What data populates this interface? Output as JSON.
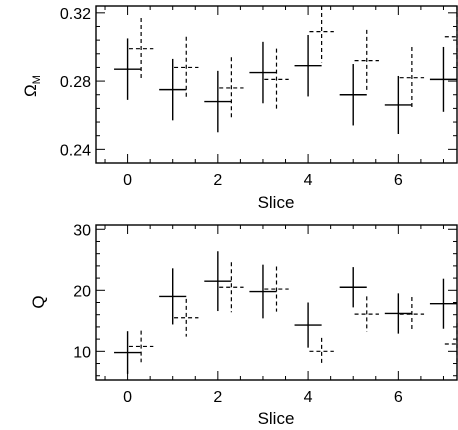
{
  "chart_data": [
    {
      "type": "scatter",
      "title": "",
      "xlabel": "Slice",
      "ylabel": "Ω",
      "ylabel_sub": "M",
      "xlim": [
        -0.7,
        7.3
      ],
      "ylim": [
        0.232,
        0.324
      ],
      "xticks": [
        0,
        2,
        4,
        6
      ],
      "xtick_labels": [
        "0",
        "2",
        "4",
        "6"
      ],
      "yticks": [
        0.24,
        0.28,
        0.32
      ],
      "ytick_labels": [
        "0.24",
        "0.28",
        "0.32"
      ],
      "series": [
        {
          "style": "solid",
          "points": [
            {
              "x": 0,
              "xerr": 0.3,
              "y": 0.287,
              "yerr": 0.018
            },
            {
              "x": 1,
              "xerr": 0.3,
              "y": 0.275,
              "yerr": 0.018
            },
            {
              "x": 2,
              "xerr": 0.3,
              "y": 0.268,
              "yerr": 0.018
            },
            {
              "x": 3,
              "xerr": 0.3,
              "y": 0.285,
              "yerr": 0.018
            },
            {
              "x": 4,
              "xerr": 0.3,
              "y": 0.289,
              "yerr": 0.018
            },
            {
              "x": 5,
              "xerr": 0.3,
              "y": 0.272,
              "yerr": 0.018
            },
            {
              "x": 6,
              "xerr": 0.3,
              "y": 0.266,
              "yerr": 0.017
            },
            {
              "x": 7,
              "xerr": 0.3,
              "y": 0.281,
              "yerr": 0.019
            }
          ]
        },
        {
          "style": "dashed",
          "points": [
            {
              "x": 0.3,
              "xerr": 0.27,
              "y": 0.299,
              "yerr": 0.018
            },
            {
              "x": 1.3,
              "xerr": 0.27,
              "y": 0.288,
              "yerr": 0.018
            },
            {
              "x": 2.3,
              "xerr": 0.27,
              "y": 0.276,
              "yerr": 0.018
            },
            {
              "x": 3.3,
              "xerr": 0.27,
              "y": 0.281,
              "yerr": 0.018
            },
            {
              "x": 4.3,
              "xerr": 0.27,
              "y": 0.309,
              "yerr": 0.018
            },
            {
              "x": 5.3,
              "xerr": 0.27,
              "y": 0.292,
              "yerr": 0.018
            },
            {
              "x": 6.3,
              "xerr": 0.27,
              "y": 0.282,
              "yerr": 0.018
            },
            {
              "x": 7.3,
              "xerr": 0.27,
              "y": 0.306,
              "yerr": 0.018
            }
          ]
        }
      ]
    },
    {
      "type": "scatter",
      "title": "",
      "xlabel": "Slice",
      "ylabel": "Q",
      "xlim": [
        -0.7,
        7.3
      ],
      "ylim": [
        5.3,
        30.7
      ],
      "xticks": [
        0,
        2,
        4,
        6
      ],
      "xtick_labels": [
        "0",
        "2",
        "4",
        "6"
      ],
      "yticks": [
        10,
        20,
        30
      ],
      "ytick_labels": [
        "10",
        "20",
        "30"
      ],
      "series": [
        {
          "style": "solid",
          "points": [
            {
              "x": 0,
              "xerr": 0.3,
              "y": 9.8,
              "yerr": 3.5
            },
            {
              "x": 1,
              "xerr": 0.3,
              "y": 19.0,
              "yerr": 4.6
            },
            {
              "x": 2,
              "xerr": 0.3,
              "y": 21.5,
              "yerr": 4.9
            },
            {
              "x": 3,
              "xerr": 0.3,
              "y": 19.8,
              "yerr": 4.4
            },
            {
              "x": 4,
              "xerr": 0.3,
              "y": 14.3,
              "yerr": 3.7
            },
            {
              "x": 5,
              "xerr": 0.3,
              "y": 20.5,
              "yerr": 3.3
            },
            {
              "x": 6,
              "xerr": 0.3,
              "y": 16.2,
              "yerr": 3.3
            },
            {
              "x": 7,
              "xerr": 0.3,
              "y": 17.8,
              "yerr": 4.1
            }
          ]
        },
        {
          "style": "dashed",
          "points": [
            {
              "x": 0.3,
              "xerr": 0.27,
              "y": 10.8,
              "yerr": 2.6
            },
            {
              "x": 1.3,
              "xerr": 0.27,
              "y": 15.5,
              "yerr": 3.1
            },
            {
              "x": 2.3,
              "xerr": 0.27,
              "y": 20.5,
              "yerr": 4.1
            },
            {
              "x": 3.3,
              "xerr": 0.27,
              "y": 20.2,
              "yerr": 3.7
            },
            {
              "x": 4.3,
              "xerr": 0.27,
              "y": 10.0,
              "yerr": 2.2
            },
            {
              "x": 5.3,
              "xerr": 0.27,
              "y": 16.1,
              "yerr": 2.9
            },
            {
              "x": 6.3,
              "xerr": 0.27,
              "y": 16.1,
              "yerr": 2.8
            },
            {
              "x": 7.3,
              "xerr": 0.27,
              "y": 11.2,
              "yerr": 3.4
            }
          ]
        }
      ]
    }
  ]
}
